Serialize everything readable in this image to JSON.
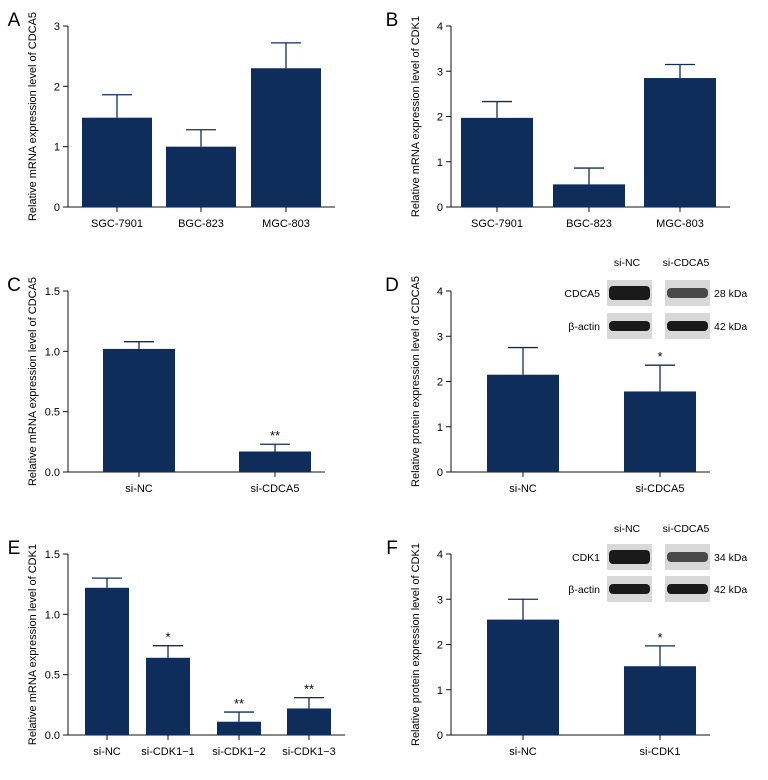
{
  "figure": {
    "bar_color": "#0f2d5a",
    "blot_bg": "#d8d8d8",
    "blot_band": "#1a1a1a"
  },
  "chart_data": [
    {
      "panel": "A",
      "type": "bar",
      "categories": [
        "SGC-7901",
        "BGC-823",
        "MGC-803"
      ],
      "values": [
        1.48,
        1.0,
        2.3
      ],
      "errors": [
        0.38,
        0.28,
        0.42
      ],
      "annotations": [
        "",
        "",
        ""
      ],
      "ylabel": "Relative mRNA expression level of CDCA5",
      "ylim": [
        0,
        3
      ],
      "yticks": [
        0,
        1,
        2,
        3
      ],
      "ytick_labels": [
        "0",
        "1",
        "2",
        "3"
      ]
    },
    {
      "panel": "B",
      "type": "bar",
      "categories": [
        "SGC-7901",
        "BGC-823",
        "MGC-803"
      ],
      "values": [
        1.97,
        0.5,
        2.85
      ],
      "errors": [
        0.36,
        0.36,
        0.3
      ],
      "annotations": [
        "",
        "",
        ""
      ],
      "ylabel": "Relative mRNA expression level of CDK1",
      "ylim": [
        0,
        4
      ],
      "yticks": [
        0,
        1,
        2,
        3,
        4
      ],
      "ytick_labels": [
        "0",
        "1",
        "2",
        "3",
        "4"
      ]
    },
    {
      "panel": "C",
      "type": "bar",
      "categories": [
        "si-NC",
        "si-CDCA5"
      ],
      "values": [
        1.02,
        0.17
      ],
      "errors": [
        0.06,
        0.06
      ],
      "annotations": [
        "",
        "**"
      ],
      "ylabel": "Relative mRNA expression level of CDCA5",
      "ylim": [
        0,
        1.5
      ],
      "yticks": [
        0,
        0.5,
        1.0,
        1.5
      ],
      "ytick_labels": [
        "0.0",
        "0.5",
        "1.0",
        "1.5"
      ]
    },
    {
      "panel": "D",
      "type": "bar",
      "categories": [
        "si-NC",
        "si-CDCA5"
      ],
      "values": [
        2.15,
        1.78
      ],
      "errors": [
        0.6,
        0.58
      ],
      "annotations": [
        "",
        "*"
      ],
      "ylabel": "Relative protein expression level of CDCA5",
      "ylim": [
        0,
        4
      ],
      "yticks": [
        0,
        1,
        2,
        3,
        4
      ],
      "ytick_labels": [
        "0",
        "1",
        "2",
        "3",
        "4"
      ],
      "blot": {
        "lanes": [
          "si-NC",
          "si-CDCA5"
        ],
        "rows": [
          {
            "protein": "CDCA5",
            "size": "28 kDa"
          },
          {
            "protein": "β-actin",
            "size": "42 kDa"
          }
        ]
      }
    },
    {
      "panel": "E",
      "type": "bar",
      "categories": [
        "si-NC",
        "si-CDK1−1",
        "si-CDK1−2",
        "si-CDK1−3"
      ],
      "values": [
        1.22,
        0.64,
        0.11,
        0.22
      ],
      "errors": [
        0.08,
        0.1,
        0.08,
        0.09
      ],
      "annotations": [
        "",
        "*",
        "**",
        "**"
      ],
      "ylabel": "Relative mRNA expression level of CDK1",
      "ylim": [
        0,
        1.5
      ],
      "yticks": [
        0,
        0.5,
        1.0,
        1.5
      ],
      "ytick_labels": [
        "0.0",
        "0.5",
        "1.0",
        "1.5"
      ]
    },
    {
      "panel": "F",
      "type": "bar",
      "categories": [
        "si-NC",
        "si-CDK1"
      ],
      "values": [
        2.55,
        1.52
      ],
      "errors": [
        0.45,
        0.45
      ],
      "annotations": [
        "",
        "*"
      ],
      "ylabel": "Relative protein expression level of CDK1",
      "ylim": [
        0,
        4
      ],
      "yticks": [
        0,
        1,
        2,
        3,
        4
      ],
      "ytick_labels": [
        "0",
        "1",
        "2",
        "3",
        "4"
      ],
      "blot": {
        "lanes": [
          "si-NC",
          "si-CDCA5"
        ],
        "rows": [
          {
            "protein": "CDK1",
            "size": "34 kDa"
          },
          {
            "protein": "β-actin",
            "size": "42 kDa"
          }
        ]
      }
    }
  ]
}
